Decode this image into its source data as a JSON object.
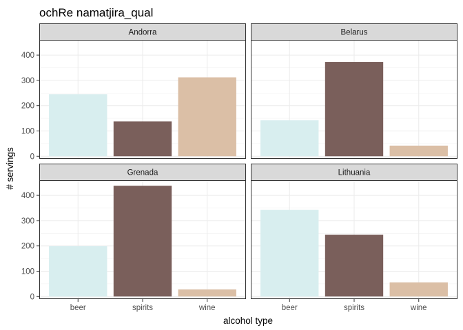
{
  "chart_data": {
    "type": "bar",
    "title": "ochRe namatjira_qual",
    "xlabel": "alcohol type",
    "ylabel": "# servings",
    "categories": [
      "beer",
      "spirits",
      "wine"
    ],
    "ylim": [
      0,
      450
    ],
    "yticks": [
      0,
      100,
      200,
      300,
      400
    ],
    "grid": true,
    "legend": "none",
    "colors": {
      "beer": "#d8eeef",
      "spirits": "#7a5f5b",
      "wine": "#dbbfa6"
    },
    "facets": [
      {
        "name": "Andorra",
        "values": [
          245,
          138,
          312
        ]
      },
      {
        "name": "Belarus",
        "values": [
          142,
          373,
          42
        ]
      },
      {
        "name": "Grenada",
        "values": [
          199,
          438,
          28
        ]
      },
      {
        "name": "Lithuania",
        "values": [
          343,
          244,
          56
        ]
      }
    ]
  }
}
